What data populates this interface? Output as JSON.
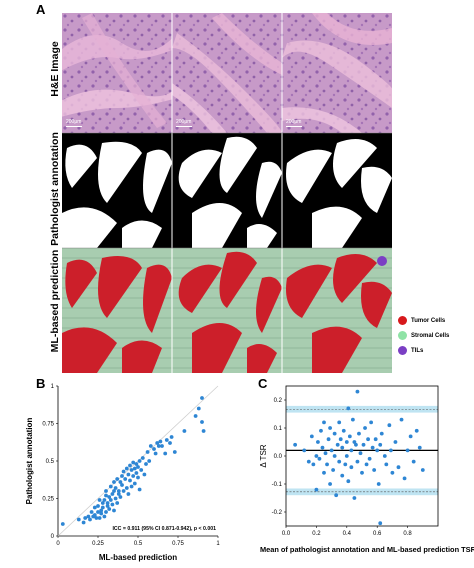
{
  "panel_a": {
    "letter": "A",
    "row_labels": [
      "H&E Image",
      "Pathologist annotation",
      "ML-based prediction"
    ],
    "scale_bar_label": "200μm",
    "legend": [
      {
        "label": "Tumor Cells",
        "color": "#d7191c"
      },
      {
        "label": "Stromal Cells",
        "color": "#8fe3a6"
      },
      {
        "label": "TILs",
        "color": "#7b3fc4"
      }
    ]
  },
  "panel_b": {
    "letter": "B"
  },
  "panel_c": {
    "letter": "C"
  },
  "chart_data": [
    {
      "type": "scatter",
      "xlabel": "ML-based prediction",
      "ylabel": "Pathologist annotation",
      "annotation": "ICC = 0.911 (95% CI 0.871-0.942), p < 0.001",
      "xlim": [
        0,
        1
      ],
      "ylim": [
        0,
        1
      ],
      "xticks": [
        "0",
        "0.25",
        "0.5",
        "0.75",
        "1"
      ],
      "yticks": [
        "0",
        "0.25",
        "0.5",
        "0.75",
        "1"
      ],
      "identity_line": true,
      "point_color": "#2e86d4",
      "points": [
        [
          0.03,
          0.08
        ],
        [
          0.13,
          0.11
        ],
        [
          0.16,
          0.09
        ],
        [
          0.17,
          0.12
        ],
        [
          0.19,
          0.13
        ],
        [
          0.2,
          0.11
        ],
        [
          0.21,
          0.16
        ],
        [
          0.22,
          0.13
        ],
        [
          0.23,
          0.14
        ],
        [
          0.23,
          0.19
        ],
        [
          0.24,
          0.12
        ],
        [
          0.25,
          0.16
        ],
        [
          0.25,
          0.2
        ],
        [
          0.26,
          0.12
        ],
        [
          0.26,
          0.24
        ],
        [
          0.27,
          0.15
        ],
        [
          0.27,
          0.17
        ],
        [
          0.28,
          0.22
        ],
        [
          0.28,
          0.19
        ],
        [
          0.29,
          0.13
        ],
        [
          0.29,
          0.24
        ],
        [
          0.3,
          0.16
        ],
        [
          0.3,
          0.27
        ],
        [
          0.3,
          0.3
        ],
        [
          0.31,
          0.2
        ],
        [
          0.31,
          0.22
        ],
        [
          0.32,
          0.18
        ],
        [
          0.32,
          0.26
        ],
        [
          0.33,
          0.24
        ],
        [
          0.33,
          0.33
        ],
        [
          0.34,
          0.21
        ],
        [
          0.34,
          0.28
        ],
        [
          0.35,
          0.17
        ],
        [
          0.35,
          0.3
        ],
        [
          0.35,
          0.36
        ],
        [
          0.36,
          0.25
        ],
        [
          0.36,
          0.32
        ],
        [
          0.37,
          0.22
        ],
        [
          0.37,
          0.38
        ],
        [
          0.38,
          0.28
        ],
        [
          0.38,
          0.3
        ],
        [
          0.39,
          0.36
        ],
        [
          0.39,
          0.26
        ],
        [
          0.4,
          0.34
        ],
        [
          0.4,
          0.4
        ],
        [
          0.41,
          0.3
        ],
        [
          0.41,
          0.43
        ],
        [
          0.42,
          0.38
        ],
        [
          0.43,
          0.32
        ],
        [
          0.43,
          0.45
        ],
        [
          0.44,
          0.28
        ],
        [
          0.44,
          0.41
        ],
        [
          0.45,
          0.37
        ],
        [
          0.45,
          0.47
        ],
        [
          0.46,
          0.44
        ],
        [
          0.46,
          0.33
        ],
        [
          0.47,
          0.49
        ],
        [
          0.47,
          0.4
        ],
        [
          0.48,
          0.45
        ],
        [
          0.48,
          0.35
        ],
        [
          0.49,
          0.48
        ],
        [
          0.49,
          0.42
        ],
        [
          0.5,
          0.46
        ],
        [
          0.5,
          0.39
        ],
        [
          0.51,
          0.5
        ],
        [
          0.51,
          0.31
        ],
        [
          0.52,
          0.44
        ],
        [
          0.53,
          0.52
        ],
        [
          0.54,
          0.41
        ],
        [
          0.55,
          0.48
        ],
        [
          0.56,
          0.56
        ],
        [
          0.57,
          0.5
        ],
        [
          0.58,
          0.6
        ],
        [
          0.6,
          0.58
        ],
        [
          0.61,
          0.55
        ],
        [
          0.62,
          0.62
        ],
        [
          0.63,
          0.6
        ],
        [
          0.64,
          0.63
        ],
        [
          0.65,
          0.6
        ],
        [
          0.67,
          0.55
        ],
        [
          0.68,
          0.64
        ],
        [
          0.7,
          0.62
        ],
        [
          0.71,
          0.66
        ],
        [
          0.73,
          0.56
        ],
        [
          0.79,
          0.7
        ],
        [
          0.86,
          0.8
        ],
        [
          0.88,
          0.85
        ],
        [
          0.9,
          0.92
        ],
        [
          0.9,
          0.76
        ],
        [
          0.91,
          0.7
        ]
      ]
    },
    {
      "type": "scatter",
      "xlabel": "Mean of pathologist annotation and ML-based prediction TSRs",
      "ylabel": "Δ TSR",
      "xlim": [
        0,
        1
      ],
      "ylim": [
        -0.25,
        0.25
      ],
      "xticks": [
        "0.0",
        "0.2",
        "0.4",
        "0.6",
        "0.8"
      ],
      "yticks": [
        "-0.2",
        "-0.1",
        "0.0",
        "0.1",
        "0.2"
      ],
      "mean_line": 0.02,
      "upper_loa": 0.167,
      "lower_loa": -0.128,
      "band_halfwidth": 0.012,
      "band_color": "#bfe4f2",
      "point_color": "#2e86d4",
      "points": [
        [
          0.06,
          0.04
        ],
        [
          0.12,
          0.02
        ],
        [
          0.15,
          -0.02
        ],
        [
          0.17,
          0.07
        ],
        [
          0.18,
          -0.03
        ],
        [
          0.2,
          0.0
        ],
        [
          0.2,
          -0.12
        ],
        [
          0.21,
          0.05
        ],
        [
          0.22,
          -0.01
        ],
        [
          0.23,
          0.09
        ],
        [
          0.24,
          0.03
        ],
        [
          0.25,
          -0.06
        ],
        [
          0.25,
          0.12
        ],
        [
          0.26,
          0.01
        ],
        [
          0.27,
          -0.03
        ],
        [
          0.28,
          0.06
        ],
        [
          0.29,
          0.1
        ],
        [
          0.29,
          -0.1
        ],
        [
          0.3,
          0.02
        ],
        [
          0.31,
          -0.05
        ],
        [
          0.32,
          0.08
        ],
        [
          0.32,
          0.0
        ],
        [
          0.33,
          -0.14
        ],
        [
          0.34,
          0.04
        ],
        [
          0.35,
          0.12
        ],
        [
          0.35,
          -0.02
        ],
        [
          0.36,
          0.06
        ],
        [
          0.37,
          -0.07
        ],
        [
          0.37,
          0.03
        ],
        [
          0.38,
          0.09
        ],
        [
          0.39,
          -0.03
        ],
        [
          0.4,
          0.0
        ],
        [
          0.4,
          0.05
        ],
        [
          0.41,
          0.17
        ],
        [
          0.41,
          -0.09
        ],
        [
          0.42,
          0.07
        ],
        [
          0.43,
          0.02
        ],
        [
          0.43,
          -0.04
        ],
        [
          0.44,
          0.13
        ],
        [
          0.45,
          0.05
        ],
        [
          0.45,
          -0.15
        ],
        [
          0.46,
          0.04
        ],
        [
          0.47,
          0.23
        ],
        [
          0.47,
          -0.02
        ],
        [
          0.48,
          0.08
        ],
        [
          0.49,
          0.01
        ],
        [
          0.5,
          -0.06
        ],
        [
          0.51,
          0.04
        ],
        [
          0.52,
          0.1
        ],
        [
          0.53,
          -0.03
        ],
        [
          0.54,
          0.06
        ],
        [
          0.55,
          -0.01
        ],
        [
          0.56,
          0.12
        ],
        [
          0.57,
          0.03
        ],
        [
          0.58,
          -0.05
        ],
        [
          0.59,
          0.06
        ],
        [
          0.6,
          0.02
        ],
        [
          0.61,
          -0.1
        ],
        [
          0.62,
          0.04
        ],
        [
          0.63,
          0.08
        ],
        [
          0.65,
          0.0
        ],
        [
          0.66,
          -0.03
        ],
        [
          0.68,
          0.11
        ],
        [
          0.69,
          0.02
        ],
        [
          0.7,
          -0.06
        ],
        [
          0.72,
          0.05
        ],
        [
          0.74,
          -0.04
        ],
        [
          0.76,
          0.13
        ],
        [
          0.78,
          -0.08
        ],
        [
          0.8,
          0.02
        ],
        [
          0.82,
          0.07
        ],
        [
          0.84,
          -0.02
        ],
        [
          0.86,
          0.09
        ],
        [
          0.88,
          0.03
        ],
        [
          0.9,
          -0.05
        ],
        [
          0.62,
          -0.24
        ]
      ]
    }
  ]
}
